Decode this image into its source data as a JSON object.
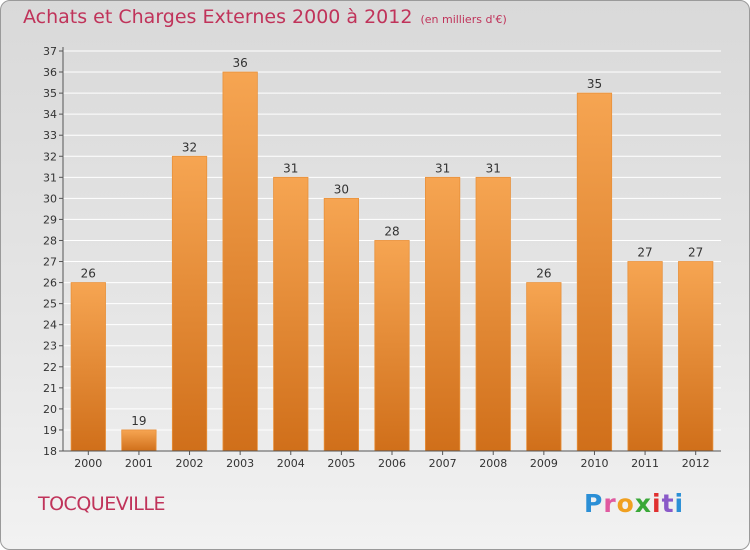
{
  "title": "Achats et Charges Externes 2000 à 2012",
  "subtitle": "(en milliers d'€)",
  "city": "TOCQUEVILLE",
  "logo": {
    "letters": [
      "P",
      "r",
      "o",
      "x",
      "i",
      "t",
      "i"
    ],
    "colors": [
      "#2b8fd6",
      "#e05aa0",
      "#f0a020",
      "#3aa838",
      "#e03030",
      "#8a5ac8",
      "#2b8fd6"
    ]
  },
  "colors": {
    "title": "#c0335a",
    "bar_light": "#f6a552",
    "bar_dark": "#d06f1a",
    "grid": "#ffffff"
  },
  "chart_data": {
    "type": "bar",
    "title": "Achats et Charges Externes 2000 à 2012",
    "categories": [
      "2000",
      "2001",
      "2002",
      "2003",
      "2004",
      "2005",
      "2006",
      "2007",
      "2008",
      "2009",
      "2010",
      "2011",
      "2012"
    ],
    "values": [
      26,
      19,
      32,
      36,
      31,
      30,
      28,
      31,
      31,
      26,
      35,
      27,
      27
    ],
    "ylim": [
      18,
      37
    ],
    "yticks": [
      18,
      19,
      20,
      21,
      22,
      23,
      24,
      25,
      26,
      27,
      28,
      29,
      30,
      31,
      32,
      33,
      34,
      35,
      36,
      37
    ],
    "grid": true,
    "data_labels": true
  }
}
